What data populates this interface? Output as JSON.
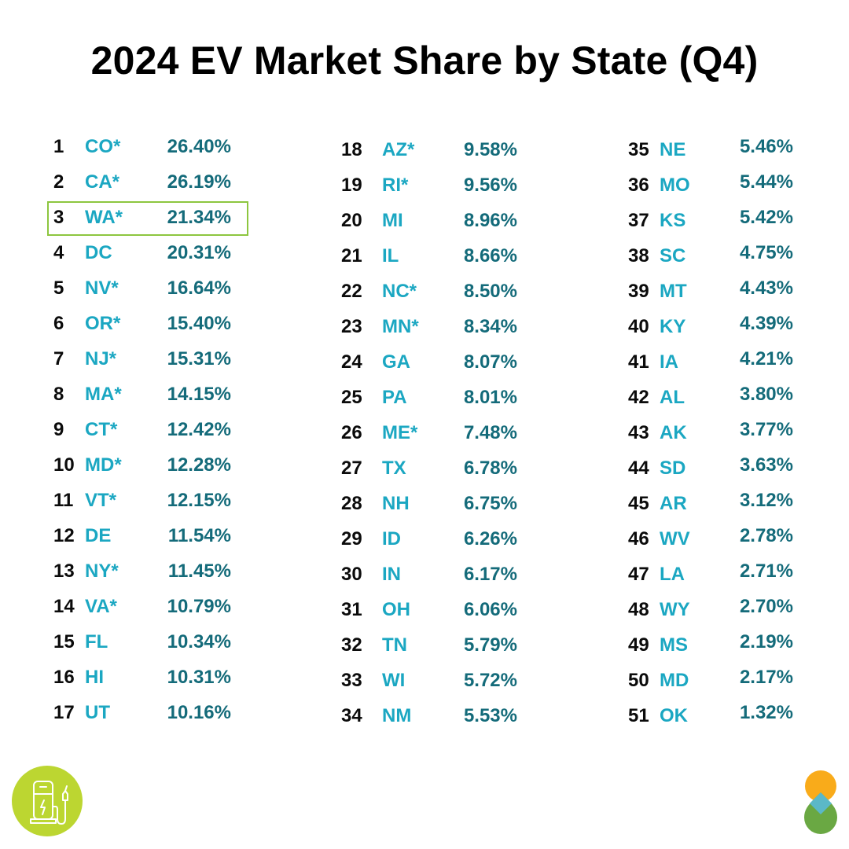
{
  "title": "2024 EV Market Share by State (Q4)",
  "colors": {
    "state": "#1ba7c2",
    "percent": "#146b7a",
    "rank": "#0b0b0b",
    "highlight_border": "#8dc63f",
    "logo_circle": "#bcd631",
    "drop_orange": "#f9ab1a",
    "drop_green": "#6aa843",
    "drop_blue": "#5bb8c8"
  },
  "highlighted_rank": 3,
  "icons": {
    "left_logo": "ev-charging-station-icon",
    "right_logo": "brand-drops-logo-icon"
  },
  "chart_data": {
    "type": "table",
    "title": "2024 EV Market Share by State (Q4)",
    "columns": [
      "rank",
      "state",
      "share_percent"
    ],
    "rows": [
      {
        "rank": "1",
        "state": "CO*",
        "share": "26.40%"
      },
      {
        "rank": "2",
        "state": "CA*",
        "share": "26.19%"
      },
      {
        "rank": "3",
        "state": "WA*",
        "share": "21.34%"
      },
      {
        "rank": "4",
        "state": "DC",
        "share": "20.31%"
      },
      {
        "rank": "5",
        "state": "NV*",
        "share": "16.64%"
      },
      {
        "rank": "6",
        "state": "OR*",
        "share": "15.40%"
      },
      {
        "rank": "7",
        "state": "NJ*",
        "share": "15.31%"
      },
      {
        "rank": "8",
        "state": "MA*",
        "share": "14.15%"
      },
      {
        "rank": "9",
        "state": "CT*",
        "share": "12.42%"
      },
      {
        "rank": "10",
        "state": "MD*",
        "share": "12.28%"
      },
      {
        "rank": "11",
        "state": "VT*",
        "share": "12.15%"
      },
      {
        "rank": "12",
        "state": "DE",
        "share": "11.54%"
      },
      {
        "rank": "13",
        "state": "NY*",
        "share": "11.45%"
      },
      {
        "rank": "14",
        "state": "VA*",
        "share": "10.79%"
      },
      {
        "rank": "15",
        "state": "FL",
        "share": "10.34%"
      },
      {
        "rank": "16",
        "state": "HI",
        "share": "10.31%"
      },
      {
        "rank": "17",
        "state": "UT",
        "share": "10.16%"
      },
      {
        "rank": "18",
        "state": "AZ*",
        "share": "9.58%"
      },
      {
        "rank": "19",
        "state": "RI*",
        "share": "9.56%"
      },
      {
        "rank": "20",
        "state": "MI",
        "share": "8.96%"
      },
      {
        "rank": "21",
        "state": "IL",
        "share": "8.66%"
      },
      {
        "rank": "22",
        "state": "NC*",
        "share": "8.50%"
      },
      {
        "rank": "23",
        "state": "MN*",
        "share": "8.34%"
      },
      {
        "rank": "24",
        "state": "GA",
        "share": "8.07%"
      },
      {
        "rank": "25",
        "state": "PA",
        "share": "8.01%"
      },
      {
        "rank": "26",
        "state": "ME*",
        "share": "7.48%"
      },
      {
        "rank": "27",
        "state": "TX",
        "share": "6.78%"
      },
      {
        "rank": "28",
        "state": "NH",
        "share": "6.75%"
      },
      {
        "rank": "29",
        "state": "ID",
        "share": "6.26%"
      },
      {
        "rank": "30",
        "state": "IN",
        "share": "6.17%"
      },
      {
        "rank": "31",
        "state": "OH",
        "share": "6.06%"
      },
      {
        "rank": "32",
        "state": "TN",
        "share": "5.79%"
      },
      {
        "rank": "33",
        "state": "WI",
        "share": "5.72%"
      },
      {
        "rank": "34",
        "state": "NM",
        "share": "5.53%"
      },
      {
        "rank": "35",
        "state": "NE",
        "share": "5.46%"
      },
      {
        "rank": "36",
        "state": "MO",
        "share": "5.44%"
      },
      {
        "rank": "37",
        "state": "KS",
        "share": "5.42%"
      },
      {
        "rank": "38",
        "state": "SC",
        "share": "4.75%"
      },
      {
        "rank": "39",
        "state": "MT",
        "share": "4.43%"
      },
      {
        "rank": "40",
        "state": "KY",
        "share": "4.39%"
      },
      {
        "rank": "41",
        "state": "IA",
        "share": "4.21%"
      },
      {
        "rank": "42",
        "state": "AL",
        "share": "3.80%"
      },
      {
        "rank": "43",
        "state": "AK",
        "share": "3.77%"
      },
      {
        "rank": "44",
        "state": "SD",
        "share": "3.63%"
      },
      {
        "rank": "45",
        "state": "AR",
        "share": "3.12%"
      },
      {
        "rank": "46",
        "state": "WV",
        "share": "2.78%"
      },
      {
        "rank": "47",
        "state": "LA",
        "share": "2.71%"
      },
      {
        "rank": "48",
        "state": "WY",
        "share": "2.70%"
      },
      {
        "rank": "49",
        "state": "MS",
        "share": "2.19%"
      },
      {
        "rank": "50",
        "state": "MD",
        "share": "2.17%"
      },
      {
        "rank": "51",
        "state": "OK",
        "share": "1.32%"
      }
    ],
    "column_groups": [
      [
        1,
        17
      ],
      [
        18,
        34
      ],
      [
        35,
        51
      ]
    ]
  }
}
